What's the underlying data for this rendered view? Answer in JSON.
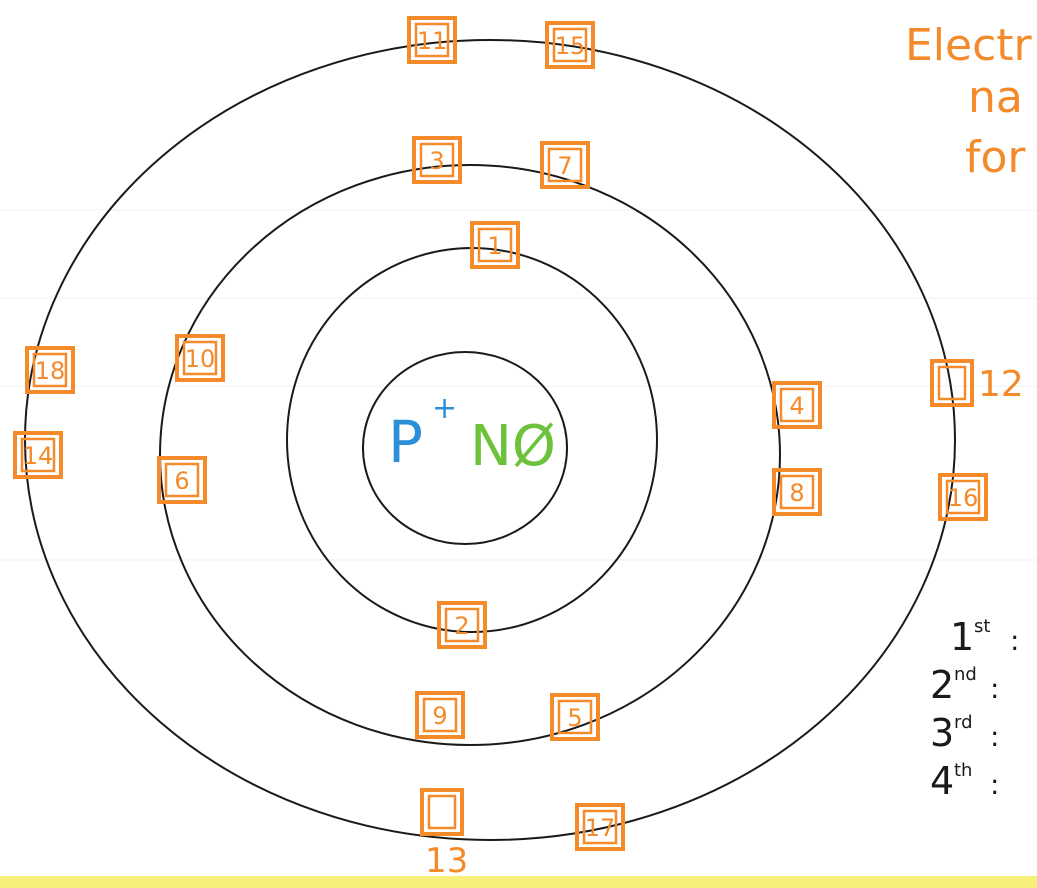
{
  "title_lines": [
    "Electr",
    "na",
    "for"
  ],
  "nucleus": {
    "proton": "P",
    "proton_sign": "+",
    "neutron": "NØ"
  },
  "boxes": [
    "11",
    "15",
    "3",
    "7",
    "1",
    "18",
    "10",
    "14",
    "6",
    "4",
    "8",
    "16",
    "2",
    "9",
    "5",
    "17"
  ],
  "outside_labels": [
    "12",
    "13"
  ],
  "legend": [
    {
      "ordinal": "1",
      "suffix": "st"
    },
    {
      "ordinal": "2",
      "suffix": "nd"
    },
    {
      "ordinal": "3",
      "suffix": "rd"
    },
    {
      "ordinal": "4",
      "suffix": "th"
    }
  ]
}
